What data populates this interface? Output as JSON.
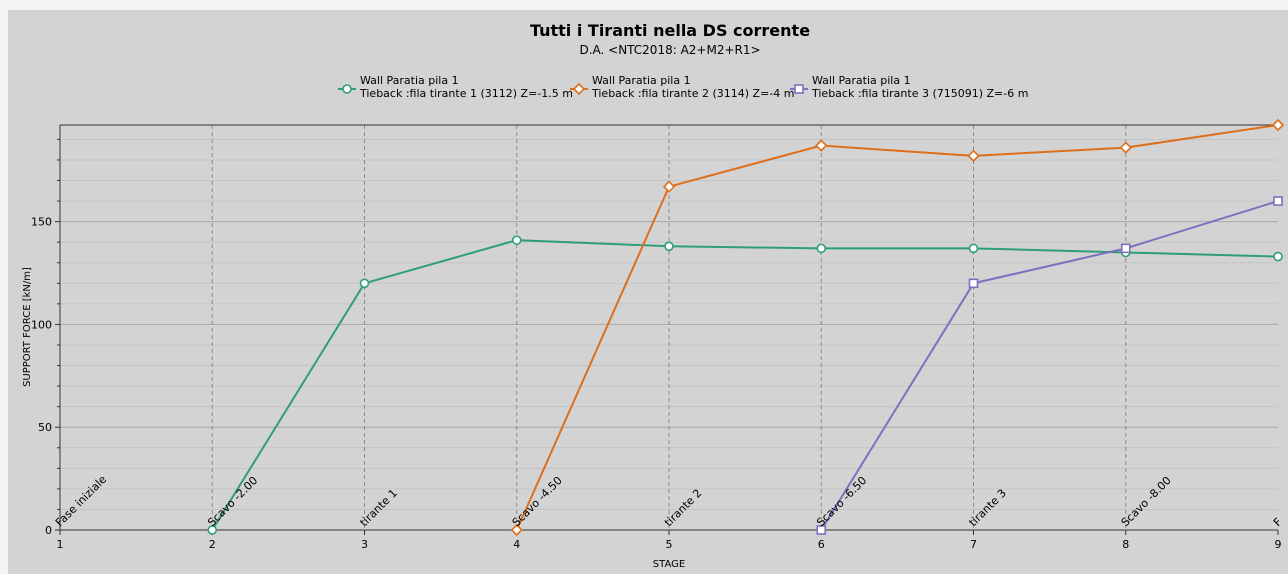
{
  "chart_data": {
    "type": "line",
    "title": "Tutti i Tiranti nella DS corrente",
    "subtitle": "D.A. <NTC2018: A2+M2+R1>",
    "xlabel": "STAGE",
    "ylabel": "SUPPORT FORCE [kN/m]",
    "x_ticks": [
      "1",
      "2",
      "3",
      "4",
      "5",
      "6",
      "7",
      "8",
      "9"
    ],
    "y_ticks": [
      "0",
      "50",
      "100",
      "150"
    ],
    "xlim": [
      1,
      9
    ],
    "ylim": [
      0,
      197
    ],
    "grid": true,
    "legend_position": "top",
    "stage_labels": [
      "Fase iniziale",
      "Scavo -2.00",
      "tirante 1",
      "Scavo -4.50",
      "tirante 2",
      "Scavo -6.50",
      "tirante 3",
      "Scavo -8.00",
      "F"
    ],
    "series": [
      {
        "name_line1": "Wall Paratia pila 1",
        "name_line2": "Tieback :fila tirante 1 (3112) Z=-1.5 m",
        "color": "#2e9e78",
        "marker": "circle",
        "x": [
          2,
          3,
          4,
          5,
          6,
          7,
          8,
          9
        ],
        "values": [
          0,
          120,
          141,
          138,
          137,
          137,
          135,
          133
        ]
      },
      {
        "name_line1": "Wall Paratia pila 1",
        "name_line2": "Tieback :fila tirante 2 (3114) Z=-4 m",
        "color": "#de6e1a",
        "marker": "diamond",
        "x": [
          4,
          5,
          6,
          7,
          8,
          9
        ],
        "values": [
          0,
          167,
          187,
          182,
          186,
          197
        ]
      },
      {
        "name_line1": "Wall Paratia pila 1",
        "name_line2": "Tieback :fila tirante 3 (715091) Z=-6 m",
        "color": "#7e6fc0",
        "marker": "square",
        "x": [
          6,
          7,
          8,
          9
        ],
        "values": [
          0,
          120,
          137,
          160
        ]
      }
    ]
  }
}
